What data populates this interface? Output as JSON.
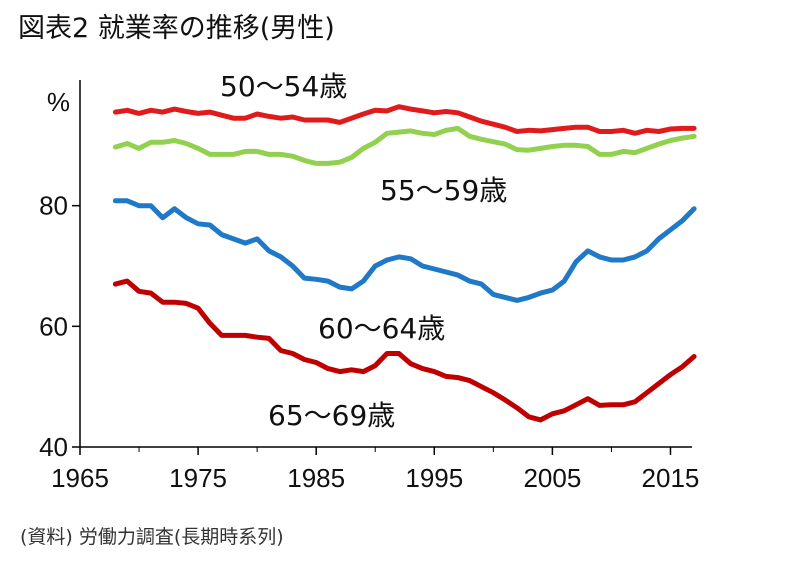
{
  "title": "図表2 就業率の推移(男性)",
  "source": "(資料) 労働力調査(長期時系列)",
  "chart_data": {
    "type": "line",
    "y_unit": "%",
    "xlim": [
      1965,
      2017.5
    ],
    "ylim": [
      40,
      100
    ],
    "x_ticks": [
      "1965",
      "1975",
      "1985",
      "1995",
      "2005",
      "2015"
    ],
    "y_ticks": [
      "40",
      "60",
      "80"
    ],
    "grid": false,
    "legend": "none (series labeled directly)",
    "x": [
      1968,
      1969,
      1970,
      1971,
      1972,
      1973,
      1974,
      1975,
      1976,
      1977,
      1978,
      1979,
      1980,
      1981,
      1982,
      1983,
      1984,
      1985,
      1986,
      1987,
      1988,
      1989,
      1990,
      1991,
      1992,
      1993,
      1994,
      1995,
      1996,
      1997,
      1998,
      1999,
      2000,
      2001,
      2002,
      2003,
      2004,
      2005,
      2006,
      2007,
      2008,
      2009,
      2010,
      2011,
      2012,
      2013,
      2014,
      2015,
      2016,
      2017
    ],
    "series": [
      {
        "name": "50〜54歳",
        "color": "#e01b1b",
        "values": [
          95.5,
          95.8,
          95.3,
          95.8,
          95.5,
          96.0,
          95.6,
          95.3,
          95.5,
          95.0,
          94.5,
          94.5,
          95.2,
          94.8,
          94.5,
          94.7,
          94.2,
          94.2,
          94.2,
          93.8,
          94.5,
          95.2,
          95.8,
          95.7,
          96.4,
          96.0,
          95.7,
          95.4,
          95.6,
          95.4,
          94.7,
          94.0,
          93.5,
          93.0,
          92.3,
          92.5,
          92.4,
          92.6,
          92.8,
          93.0,
          93.0,
          92.3,
          92.3,
          92.5,
          92.0,
          92.5,
          92.3,
          92.7,
          92.8,
          92.8
        ]
      },
      {
        "name": "55〜59歳",
        "color": "#92d050",
        "values": [
          89.7,
          90.3,
          89.5,
          90.5,
          90.5,
          90.8,
          90.3,
          89.5,
          88.5,
          88.5,
          88.5,
          89.0,
          89.0,
          88.5,
          88.5,
          88.2,
          87.5,
          87.0,
          87.0,
          87.2,
          88.0,
          89.5,
          90.5,
          92.0,
          92.2,
          92.4,
          92.0,
          91.8,
          92.5,
          92.8,
          91.5,
          91.0,
          90.6,
          90.2,
          89.3,
          89.2,
          89.5,
          89.8,
          90.0,
          90.0,
          89.8,
          88.5,
          88.5,
          89.0,
          88.8,
          89.5,
          90.2,
          90.8,
          91.2,
          91.5
        ]
      },
      {
        "name": "60〜64歳",
        "color": "#1f78c8",
        "values": [
          80.8,
          80.8,
          80.0,
          80.0,
          78.0,
          79.5,
          78.0,
          77.0,
          76.8,
          75.2,
          74.5,
          73.8,
          74.5,
          72.5,
          71.5,
          70.0,
          68.0,
          67.8,
          67.5,
          66.5,
          66.2,
          67.5,
          70.0,
          71.0,
          71.5,
          71.2,
          70.0,
          69.5,
          69.0,
          68.5,
          67.5,
          67.0,
          65.3,
          64.8,
          64.3,
          64.8,
          65.5,
          66.0,
          67.5,
          70.7,
          72.5,
          71.5,
          71.0,
          71.0,
          71.5,
          72.5,
          74.5,
          76.0,
          77.5,
          79.5
        ]
      },
      {
        "name": "65〜69歳",
        "color": "#c00000",
        "values": [
          67.0,
          67.5,
          65.8,
          65.5,
          64.0,
          64.0,
          63.8,
          63.0,
          60.5,
          58.5,
          58.5,
          58.5,
          58.2,
          58.0,
          56.0,
          55.5,
          54.5,
          54.0,
          53.0,
          52.5,
          52.8,
          52.5,
          53.5,
          55.5,
          55.5,
          53.8,
          53.0,
          52.5,
          51.7,
          51.5,
          51.0,
          50.0,
          49.0,
          47.8,
          46.5,
          45.0,
          44.5,
          45.5,
          46.0,
          47.0,
          48.0,
          46.9,
          47.0,
          47.0,
          47.5,
          49.0,
          50.5,
          52.0,
          53.3,
          55.0
        ]
      }
    ]
  }
}
